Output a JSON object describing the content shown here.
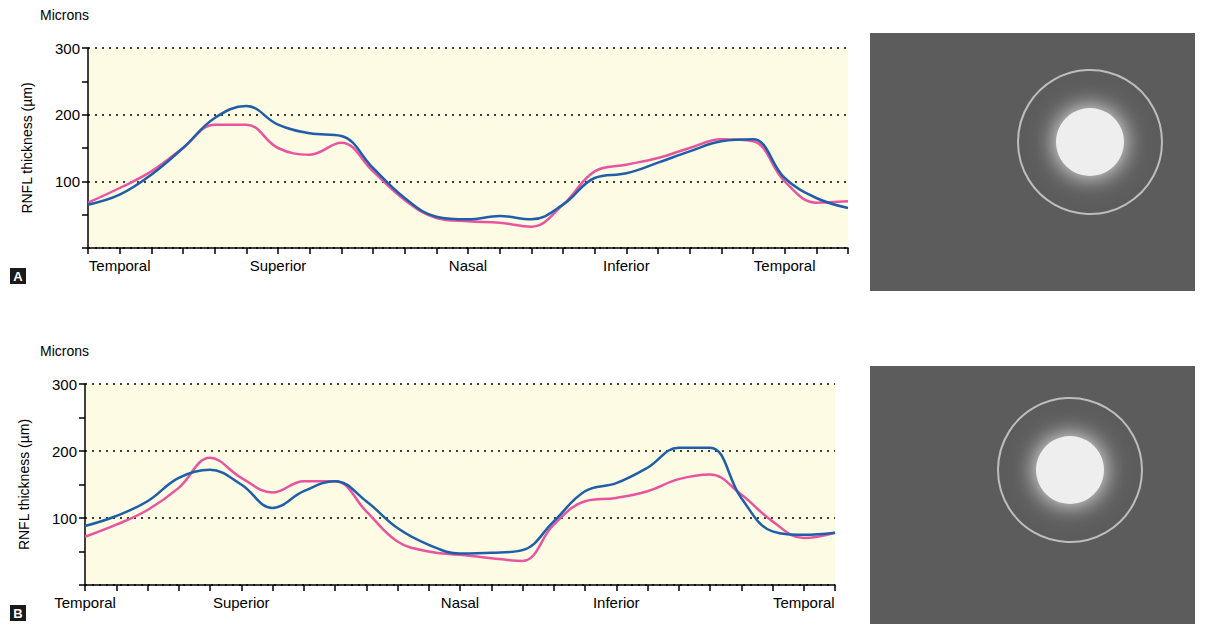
{
  "chart_data": [
    {
      "type": "line",
      "panel_label": "A",
      "unit_label": "Microns",
      "ylabel": "RNFL thickness (µm)",
      "categories": [
        null,
        "Temporal",
        null,
        null,
        null,
        null,
        "Superior",
        null,
        null,
        null,
        null,
        null,
        "Nasal",
        null,
        null,
        null,
        null,
        "Inferior",
        null,
        null,
        null,
        null,
        "Temporal",
        null,
        null
      ],
      "series": [
        {
          "color": "#e8559f",
          "values": [
            68,
            90,
            115,
            150,
            185,
            185,
            150,
            140,
            158,
            115,
            72,
            45,
            40,
            38,
            32,
            65,
            115,
            125,
            135,
            150,
            163,
            160,
            100,
            68,
            70
          ]
        },
        {
          "color": "#1f5ea8",
          "values": [
            65,
            80,
            110,
            150,
            195,
            213,
            185,
            172,
            168,
            120,
            75,
            47,
            43,
            48,
            43,
            65,
            105,
            112,
            128,
            145,
            160,
            163,
            105,
            75,
            60
          ]
        }
      ],
      "ylim": [
        0,
        300
      ],
      "yticks": [
        100,
        200,
        300
      ],
      "grid": true
    },
    {
      "type": "line",
      "panel_label": "B",
      "unit_label": "Microns",
      "ylabel": "RNFL thickness (µm)",
      "categories": [
        "Temporal",
        null,
        null,
        null,
        null,
        "Superior",
        null,
        null,
        null,
        null,
        null,
        null,
        "Nasal",
        null,
        null,
        null,
        null,
        "Inferior",
        null,
        null,
        null,
        null,
        null,
        "Temporal",
        null
      ],
      "series": [
        {
          "color": "#e8559f",
          "values": [
            72,
            90,
            112,
            145,
            190,
            160,
            138,
            155,
            155,
            110,
            65,
            50,
            45,
            40,
            36,
            90,
            125,
            130,
            140,
            158,
            165,
            135,
            95,
            70,
            78
          ]
        },
        {
          "color": "#1f5ea8",
          "values": [
            88,
            103,
            125,
            160,
            172,
            150,
            115,
            140,
            155,
            125,
            85,
            60,
            47,
            48,
            52,
            95,
            140,
            152,
            175,
            205,
            205,
            130,
            80,
            75,
            78
          ]
        }
      ],
      "ylim": [
        0,
        300
      ],
      "yticks": [
        100,
        200,
        300
      ],
      "grid": true
    }
  ]
}
